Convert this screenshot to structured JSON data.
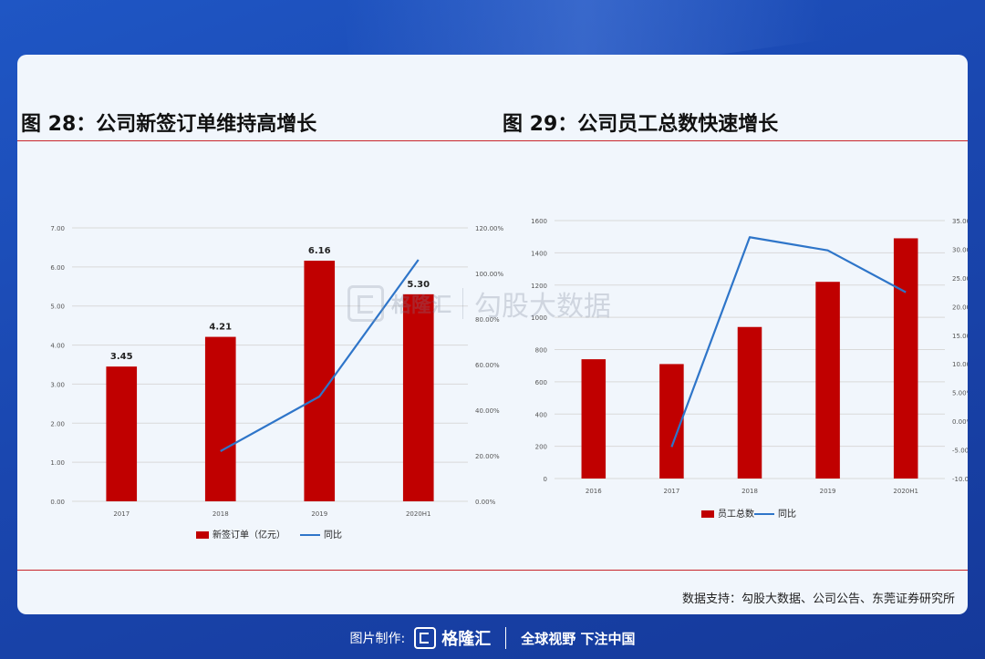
{
  "figures": [
    {
      "title": "图 28：公司新签订单维持高增长"
    },
    {
      "title": "图 29：公司员工总数快速增长"
    }
  ],
  "source": "数据支持：勾股大数据、公司公告、东莞证券研究所",
  "watermark": {
    "brand": "格隆汇",
    "text": "勾股大数据"
  },
  "footer": {
    "made": "图片制作:",
    "brand": "格隆汇",
    "slogan": "全球视野 下注中国"
  },
  "colors": {
    "bar": "#c00000",
    "line": "#2e75c9",
    "accent": "#c9252a"
  },
  "chart_data": [
    {
      "type": "bar",
      "categories": [
        "2017",
        "2018",
        "2019",
        "2020H1"
      ],
      "series": [
        {
          "name": "新签订单（亿元）",
          "type": "bar",
          "axis": "left",
          "values": [
            3.45,
            4.21,
            6.16,
            5.3
          ],
          "labels": [
            "3.45",
            "4.21",
            "6.16",
            "5.30"
          ]
        },
        {
          "name": "同比",
          "type": "line",
          "axis": "right",
          "values": [
            null,
            22,
            46,
            106
          ]
        }
      ],
      "y_left": {
        "min": 0,
        "max": 7,
        "ticks": [
          "0.00",
          "1.00",
          "2.00",
          "3.00",
          "4.00",
          "5.00",
          "6.00",
          "7.00"
        ]
      },
      "y_right": {
        "min": 0,
        "max": 120,
        "ticks": [
          "0.00%",
          "20.00%",
          "40.00%",
          "60.00%",
          "80.00%",
          "100.00%",
          "120.00%"
        ]
      },
      "grid": true,
      "legend": "bottom"
    },
    {
      "type": "bar",
      "categories": [
        "2016",
        "2017",
        "2018",
        "2019",
        "2020H1"
      ],
      "series": [
        {
          "name": "员工总数",
          "type": "bar",
          "axis": "left",
          "values": [
            740,
            710,
            940,
            1220,
            1490
          ]
        },
        {
          "name": "同比",
          "type": "line",
          "axis": "right",
          "values": [
            null,
            -4.5,
            32.1,
            29.8,
            22.5
          ]
        }
      ],
      "y_left": {
        "min": 0,
        "max": 1600,
        "ticks": [
          "0",
          "200",
          "400",
          "600",
          "800",
          "1000",
          "1200",
          "1400",
          "1600"
        ]
      },
      "y_right": {
        "min": -10,
        "max": 35,
        "ticks": [
          "-10.00%",
          "-5.00%",
          "0.00%",
          "5.00%",
          "10.00%",
          "15.00%",
          "20.00%",
          "25.00%",
          "30.00%",
          "35.00%"
        ]
      },
      "grid": true,
      "legend": "bottom"
    }
  ]
}
